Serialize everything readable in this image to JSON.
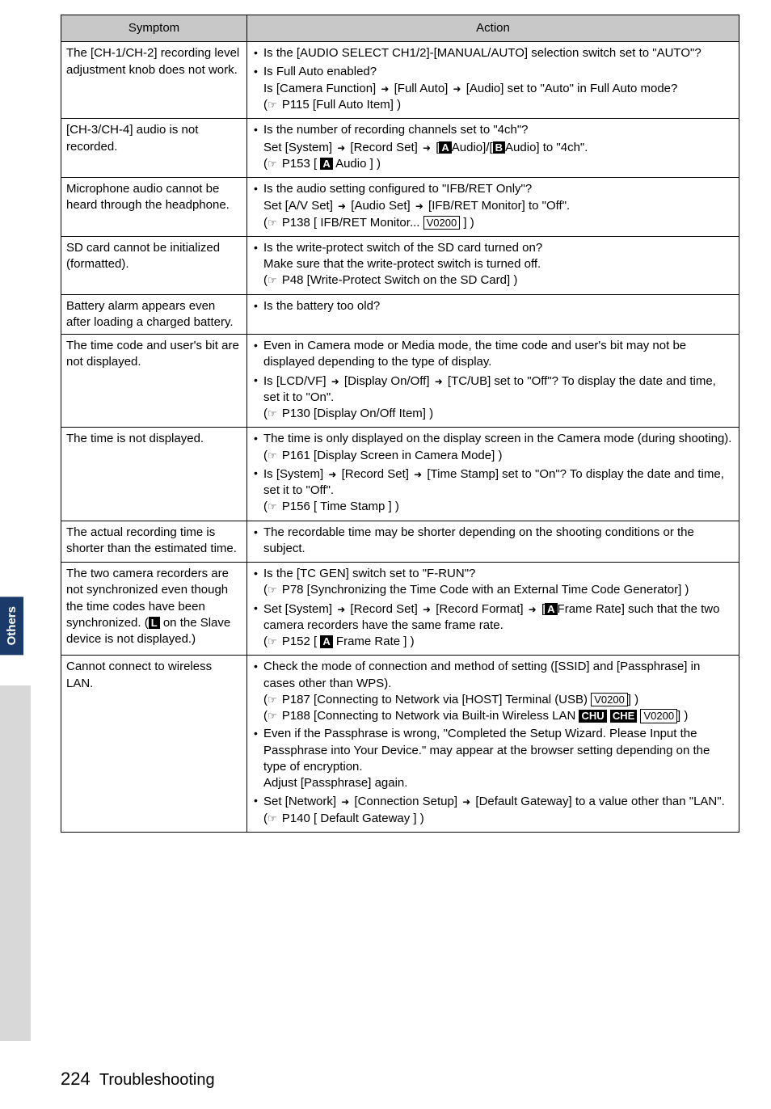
{
  "headers": {
    "symptom": "Symptom",
    "action": "Action"
  },
  "rows": [
    {
      "s": "The [CH-1/CH-2] recording level adjustment knob does not work.",
      "a": [
        "Is the [AUDIO SELECT CH1/2]-[MANUAL/AUTO] selection switch set to \"AUTO\"?",
        "Is Full Auto enabled?<br>Is [Camera Function] <span class='sym arr'></span> [Full Auto] <span class='sym arr'></span> [Audio] set to \"Auto\" in Full Auto mode?<br>(<span class='ptr'></span> P115 [Full Auto Item] )"
      ]
    },
    {
      "s": "[CH-3/CH-4] audio is not recorded.",
      "a": [
        "Is the number of recording channels set to \"4ch\"?<br>Set [System] <span class='sym arr'></span> [Record Set] <span class='sym arr'></span> [<span class='blk'>A</span>Audio]/[<span class='blk'>B</span>Audio] to \"4ch\".<br>(<span class='ptr'></span> P153 [ <span class='blk'>A</span> Audio ] )"
      ]
    },
    {
      "s": "Microphone audio cannot be heard through the headphone.",
      "a": [
        "Is the audio setting configured to \"IFB/RET Only\"?<br>Set [A/V Set] <span class='sym arr'></span> [Audio Set] <span class='sym arr'></span> [IFB/RET Monitor] to \"Off\".<br>(<span class='ptr'></span> P138 [ IFB/RET Monitor... <span class='box'>V0200</span> ] )"
      ]
    },
    {
      "s": "SD card cannot be initialized (formatted).",
      "a": [
        "Is the write-protect switch of the SD card turned on?<br>Make sure that the write-protect switch is turned off.<br>(<span class='ptr'></span> P48 [Write-Protect Switch on the SD Card] )"
      ]
    },
    {
      "s": "Battery alarm appears even after loading a charged battery.",
      "a": [
        "Is the battery too old?"
      ]
    },
    {
      "s": "The time code and user's bit are not displayed.",
      "a": [
        "Even in Camera mode or Media mode, the time code and user's bit may not be displayed depending to the type of display.",
        "Is [LCD/VF] <span class='sym arr'></span> [Display On/Off] <span class='sym arr'></span> [TC/UB] set to \"Off\"? To display the date and time, set it to \"On\".<br>(<span class='ptr'></span> P130 [Display On/Off Item] )"
      ]
    },
    {
      "s": "The time is not displayed.",
      "a": [
        "The time is only displayed on the display screen in the Camera mode (during shooting).<br>(<span class='ptr'></span> P161 [Display Screen in Camera Mode] )",
        "Is [System] <span class='sym arr'></span> [Record Set] <span class='sym arr'></span> [Time Stamp] set to \"On\"? To display the date and time, set it to \"Off\".<br>(<span class='ptr'></span> P156 [ Time Stamp ] )"
      ]
    },
    {
      "s": "The actual recording time is shorter than the estimated time.",
      "a": [
        "The recordable time may be shorter depending on the shooting conditions or the subject."
      ]
    },
    {
      "s": "The two camera recorders are not synchronized even though the time codes have been synchronized. (<span class='blk'>L</span> on the Slave device is not displayed.)",
      "a": [
        "Is the [TC GEN] switch set to \"F-RUN\"?<br>(<span class='ptr'></span> P78 [Synchronizing the Time Code with an External Time Code Generator] )",
        "Set [System] <span class='sym arr'></span> [Record Set] <span class='sym arr'></span> [Record Format] <span class='sym arr'></span> [<span class='blk'>A</span>Frame Rate] such that the two camera recorders have the same frame rate.<br>(<span class='ptr'></span> P152 [ <span class='blk'>A</span> Frame Rate ] )"
      ]
    },
    {
      "s": "Cannot connect to wireless LAN.",
      "a": [
        "Check the mode of connection and method of setting ([SSID] and [Passphrase] in cases other than WPS).<br>(<span class='ptr'></span> P187 [Connecting to Network via [HOST] Terminal (USB) <span class='box'>V0200</span>] )<br>(<span class='ptr'></span> P188 [Connecting to Network via Built-in Wireless LAN <span class='blk'>CHU</span> <span class='blk'>CHE</span> <span class='box'>V0200</span>] )",
        "Even if the Passphrase is wrong, \"Completed the Setup Wizard. Please Input the Passphrase into Your Device.\" may appear at the browser setting depending on the type of encryption.<br>Adjust [Passphrase] again.",
        "Set [Network] <span class='sym arr'></span> [Connection Setup] <span class='sym arr'></span> [Default Gateway] to a value other than \"LAN\".<br>(<span class='ptr'></span> P140 [ Default Gateway ] )"
      ]
    }
  ],
  "tab": "Others",
  "footer": {
    "page": "224",
    "title": "Troubleshooting"
  }
}
